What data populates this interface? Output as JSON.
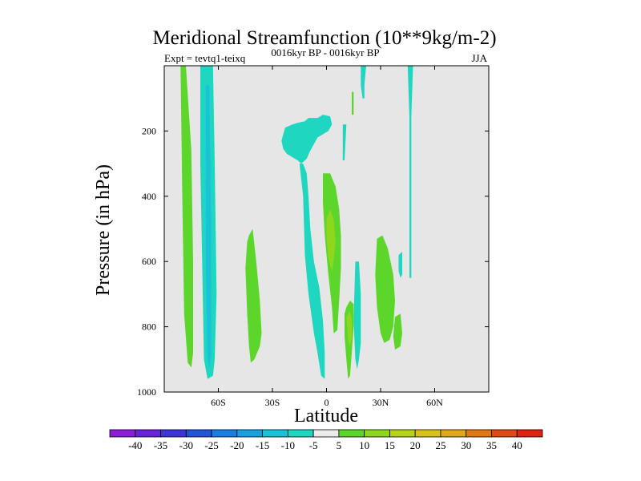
{
  "chart_data": {
    "type": "heatmap",
    "title": "Meridional Streamfunction (10**9kg/m-2)",
    "subtitle_left": "Expt = tevtq1-teixq",
    "subtitle_center": "0016kyr BP - 0016kyr BP",
    "subtitle_right": "JJA",
    "xlabel": "Latitude",
    "ylabel": "Pressure (in hPa)",
    "xlim": [
      -90,
      90
    ],
    "ylim": [
      1000,
      0
    ],
    "x_ticks": [
      -60,
      -30,
      0,
      30,
      60
    ],
    "x_tick_labels": [
      "60S",
      "30S",
      "0",
      "30N",
      "60N"
    ],
    "y_ticks": [
      200,
      400,
      600,
      800,
      1000
    ],
    "y_tick_labels": [
      "200",
      "400",
      "600",
      "800",
      "1000"
    ],
    "background_color": "#e6e6e6",
    "colorbar": {
      "labels": [
        "-40",
        "-35",
        "-30",
        "-25",
        "-20",
        "-15",
        "-10",
        "-5",
        "5",
        "10",
        "15",
        "20",
        "25",
        "30",
        "35",
        "40"
      ],
      "colors": [
        "#8c1cd8",
        "#6a22d8",
        "#3d35d8",
        "#2155d8",
        "#1a7ee0",
        "#19a0e0",
        "#1ac2d8",
        "#1fd6c0",
        "#ebebeb",
        "#5cd62a",
        "#8fd61f",
        "#b6d21a",
        "#d8c21a",
        "#e0a818",
        "#e07818",
        "#e04a16",
        "#e02414"
      ]
    },
    "regions": [
      {
        "level": 5,
        "color": "#5cd62a",
        "points": [
          [
            -81,
            0
          ],
          [
            -78,
            0
          ],
          [
            -75,
            260
          ],
          [
            -74,
            600
          ],
          [
            -74,
            880
          ],
          [
            -75,
            925
          ],
          [
            -77,
            910
          ],
          [
            -79,
            760
          ],
          [
            -80,
            400
          ]
        ]
      },
      {
        "level": -5,
        "color": "#1fd6c0",
        "points": [
          [
            -70,
            0
          ],
          [
            -63,
            0
          ],
          [
            -62,
            300
          ],
          [
            -61,
            700
          ],
          [
            -62,
            900
          ],
          [
            -63,
            950
          ],
          [
            -66,
            960
          ],
          [
            -68,
            900
          ],
          [
            -69,
            600
          ],
          [
            -70,
            300
          ]
        ]
      },
      {
        "level": -10,
        "color": "#1ac2d8",
        "points": [
          [
            -67,
            60
          ],
          [
            -65,
            60
          ],
          [
            -64,
            500
          ],
          [
            -64,
            880
          ],
          [
            -65,
            930
          ],
          [
            -66,
            900
          ],
          [
            -67,
            600
          ]
        ]
      },
      {
        "level": 5,
        "color": "#5cd62a",
        "points": [
          [
            -44,
            540
          ],
          [
            -43,
            520
          ],
          [
            -41,
            500
          ],
          [
            -39,
            600
          ],
          [
            -37,
            720
          ],
          [
            -36,
            820
          ],
          [
            -37,
            860
          ],
          [
            -40,
            900
          ],
          [
            -42,
            910
          ],
          [
            -43,
            860
          ],
          [
            -44,
            760
          ],
          [
            -45,
            620
          ]
        ]
      },
      {
        "level": -5,
        "color": "#1fd6c0",
        "points": [
          [
            -25,
            230
          ],
          [
            -23,
            190
          ],
          [
            -19,
            180
          ],
          [
            -16,
            175
          ],
          [
            -12,
            170
          ],
          [
            -10,
            160
          ],
          [
            -5,
            160
          ],
          [
            -2,
            150
          ],
          [
            2,
            155
          ],
          [
            3,
            180
          ],
          [
            1,
            200
          ],
          [
            -2,
            210
          ],
          [
            -5,
            220
          ],
          [
            -7,
            240
          ],
          [
            -9,
            260
          ],
          [
            -11,
            285
          ],
          [
            -14,
            300
          ],
          [
            -16,
            290
          ],
          [
            -19,
            280
          ],
          [
            -22,
            270
          ],
          [
            -24,
            255
          ]
        ]
      },
      {
        "level": -5,
        "color": "#1fd6c0",
        "points": [
          [
            -15,
            300
          ],
          [
            -13,
            400
          ],
          [
            -12,
            580
          ],
          [
            -10,
            700
          ],
          [
            -7,
            820
          ],
          [
            -5,
            880
          ],
          [
            -3,
            950
          ],
          [
            -1,
            960
          ],
          [
            -1,
            880
          ],
          [
            -2,
            780
          ],
          [
            -4,
            680
          ],
          [
            -7,
            600
          ],
          [
            -9,
            500
          ],
          [
            -10,
            400
          ],
          [
            -11,
            330
          ],
          [
            -13,
            300
          ]
        ]
      },
      {
        "level": 5,
        "color": "#5cd62a",
        "points": [
          [
            -2,
            330
          ],
          [
            2,
            330
          ],
          [
            5,
            370
          ],
          [
            7,
            440
          ],
          [
            8,
            520
          ],
          [
            8,
            620
          ],
          [
            7,
            720
          ],
          [
            6,
            810
          ],
          [
            4,
            820
          ],
          [
            3,
            740
          ],
          [
            1,
            640
          ],
          [
            -1,
            520
          ],
          [
            -2,
            420
          ]
        ]
      },
      {
        "level": 10,
        "color": "#8fd61f",
        "points": [
          [
            0,
            470
          ],
          [
            2,
            440
          ],
          [
            4,
            470
          ],
          [
            5,
            540
          ],
          [
            4,
            600
          ],
          [
            3,
            630
          ],
          [
            1,
            590
          ],
          [
            0,
            520
          ]
        ]
      },
      {
        "level": 5,
        "color": "#5cd62a",
        "points": [
          [
            10,
            760
          ],
          [
            11,
            740
          ],
          [
            13,
            720
          ],
          [
            15,
            730
          ],
          [
            15,
            800
          ],
          [
            14,
            880
          ],
          [
            13,
            950
          ],
          [
            12,
            960
          ],
          [
            11,
            900
          ],
          [
            10,
            830
          ]
        ]
      },
      {
        "level": 10,
        "color": "#8fd61f",
        "points": [
          [
            11,
            770
          ],
          [
            13,
            750
          ],
          [
            14,
            780
          ],
          [
            14,
            830
          ],
          [
            13,
            860
          ],
          [
            12,
            840
          ]
        ]
      },
      {
        "level": 5,
        "color": "#5cd62a",
        "points": [
          [
            14,
            80
          ],
          [
            15,
            80
          ],
          [
            15,
            150
          ],
          [
            14,
            150
          ]
        ]
      },
      {
        "level": -5,
        "color": "#1fd6c0",
        "points": [
          [
            16,
            600
          ],
          [
            18,
            600
          ],
          [
            19,
            700
          ],
          [
            19,
            850
          ],
          [
            18,
            900
          ],
          [
            17,
            930
          ],
          [
            16,
            900
          ],
          [
            15,
            780
          ]
        ]
      },
      {
        "level": -5,
        "color": "#1fd6c0",
        "points": [
          [
            19,
            0
          ],
          [
            22,
            0
          ],
          [
            21,
            60
          ],
          [
            21,
            100
          ],
          [
            20,
            100
          ],
          [
            19,
            60
          ]
        ]
      },
      {
        "level": -5,
        "color": "#1fd6c0",
        "points": [
          [
            9,
            180
          ],
          [
            11,
            180
          ],
          [
            10,
            290
          ],
          [
            9,
            290
          ]
        ]
      },
      {
        "level": 5,
        "color": "#5cd62a",
        "points": [
          [
            28,
            530
          ],
          [
            31,
            520
          ],
          [
            34,
            560
          ],
          [
            37,
            640
          ],
          [
            38,
            720
          ],
          [
            37,
            800
          ],
          [
            35,
            840
          ],
          [
            32,
            850
          ],
          [
            30,
            820
          ],
          [
            28,
            740
          ],
          [
            27,
            640
          ]
        ]
      },
      {
        "level": 5,
        "color": "#5cd62a",
        "points": [
          [
            38,
            770
          ],
          [
            41,
            760
          ],
          [
            42,
            820
          ],
          [
            41,
            860
          ],
          [
            38,
            870
          ],
          [
            37,
            830
          ]
        ]
      },
      {
        "level": -5,
        "color": "#1fd6c0",
        "points": [
          [
            45,
            0
          ],
          [
            48,
            0
          ],
          [
            47,
            160
          ],
          [
            47,
            650
          ],
          [
            46,
            650
          ],
          [
            46,
            160
          ]
        ]
      },
      {
        "level": -5,
        "color": "#1fd6c0",
        "points": [
          [
            40,
            580
          ],
          [
            42,
            570
          ],
          [
            42,
            640
          ],
          [
            41,
            650
          ],
          [
            40,
            630
          ]
        ]
      }
    ]
  }
}
